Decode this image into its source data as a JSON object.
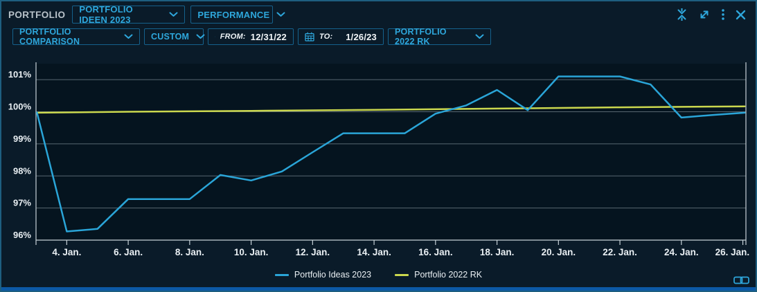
{
  "window": {
    "title_label": "PORTFOLIO"
  },
  "header": {
    "portfolio_dropdown": "PORTFOLIO IDEEN 2023",
    "view_dropdown": "PERFORMANCE",
    "icons": [
      "collapse-vertical-icon",
      "expand-icon",
      "kebab-menu-icon",
      "close-icon"
    ]
  },
  "toolbar": {
    "comparison_dropdown": "PORTFOLIO COMPARISON",
    "range_dropdown": "CUSTOM",
    "from_label": "FROM:",
    "from_value": "12/31/22",
    "to_label": "TO:",
    "to_value": "1/26/23",
    "benchmark_dropdown": "PORTFOLIO 2022 RK",
    "calendar_icon": "calendar-icon"
  },
  "footer": {
    "link_icon": "link-icon"
  },
  "colors": {
    "accent": "#2ea7dc",
    "control_border": "#15618c",
    "background": "#0a1b29",
    "plot_background": "#05141f",
    "gridline": "rgba(190,204,212,0.45)",
    "axis": "#c7d2d8",
    "text": "#e9eff3",
    "line_blue": "#2aa5d8",
    "line_yellow": "#cbd84e",
    "bottom_bar": "#0c59a5"
  },
  "chart_data": {
    "type": "line",
    "title": "",
    "xlabel": "",
    "ylabel": "",
    "grid": "horizontal",
    "legend_position": "bottom-center",
    "xlim": [
      3.0,
      26.1
    ],
    "ylim": [
      96,
      101.5
    ],
    "x_unit": "day of January 2023",
    "y_unit": "percent of start value",
    "yticks": [
      {
        "value": 96,
        "label": "96%"
      },
      {
        "value": 97,
        "label": "97%"
      },
      {
        "value": 98,
        "label": "98%"
      },
      {
        "value": 99,
        "label": "99%"
      },
      {
        "value": 100,
        "label": "100%"
      },
      {
        "value": 101,
        "label": "101%"
      }
    ],
    "xticks": [
      {
        "value": 4,
        "label": "4. Jan."
      },
      {
        "value": 6,
        "label": "6. Jan."
      },
      {
        "value": 8,
        "label": "8. Jan."
      },
      {
        "value": 10,
        "label": "10. Jan."
      },
      {
        "value": 12,
        "label": "12. Jan."
      },
      {
        "value": 14,
        "label": "14. Jan."
      },
      {
        "value": 16,
        "label": "16. Jan."
      },
      {
        "value": 18,
        "label": "18. Jan."
      },
      {
        "value": 20,
        "label": "20. Jan."
      },
      {
        "value": 22,
        "label": "22. Jan."
      },
      {
        "value": 24,
        "label": "24. Jan."
      },
      {
        "value": 26,
        "label": "26. Jan."
      }
    ],
    "series": [
      {
        "name": "Portfolio 2022 RK",
        "color": "#cbd84e",
        "points": [
          [
            3.03,
            99.97
          ],
          [
            6,
            100.0
          ],
          [
            10,
            100.03
          ],
          [
            14,
            100.06
          ],
          [
            18,
            100.1
          ],
          [
            22,
            100.14
          ],
          [
            26.06,
            100.17
          ]
        ]
      },
      {
        "name": "Portfolio Ideas 2023",
        "color": "#2aa5d8",
        "points": [
          [
            3.03,
            99.98
          ],
          [
            4,
            96.27
          ],
          [
            5,
            96.35
          ],
          [
            6,
            97.28
          ],
          [
            7,
            97.28
          ],
          [
            8,
            97.28
          ],
          [
            9,
            98.03
          ],
          [
            10,
            97.86
          ],
          [
            11,
            98.14
          ],
          [
            12,
            98.74
          ],
          [
            13,
            99.33
          ],
          [
            14,
            99.33
          ],
          [
            15,
            99.33
          ],
          [
            16,
            99.94
          ],
          [
            17,
            100.2
          ],
          [
            18,
            100.68
          ],
          [
            19,
            100.05
          ],
          [
            20,
            101.1
          ],
          [
            21,
            101.1
          ],
          [
            22,
            101.1
          ],
          [
            23,
            100.85
          ],
          [
            24,
            99.82
          ],
          [
            25,
            99.9
          ],
          [
            26.06,
            99.97
          ]
        ]
      }
    ],
    "legend_order": [
      "Portfolio Ideas 2023",
      "Portfolio 2022 RK"
    ]
  }
}
